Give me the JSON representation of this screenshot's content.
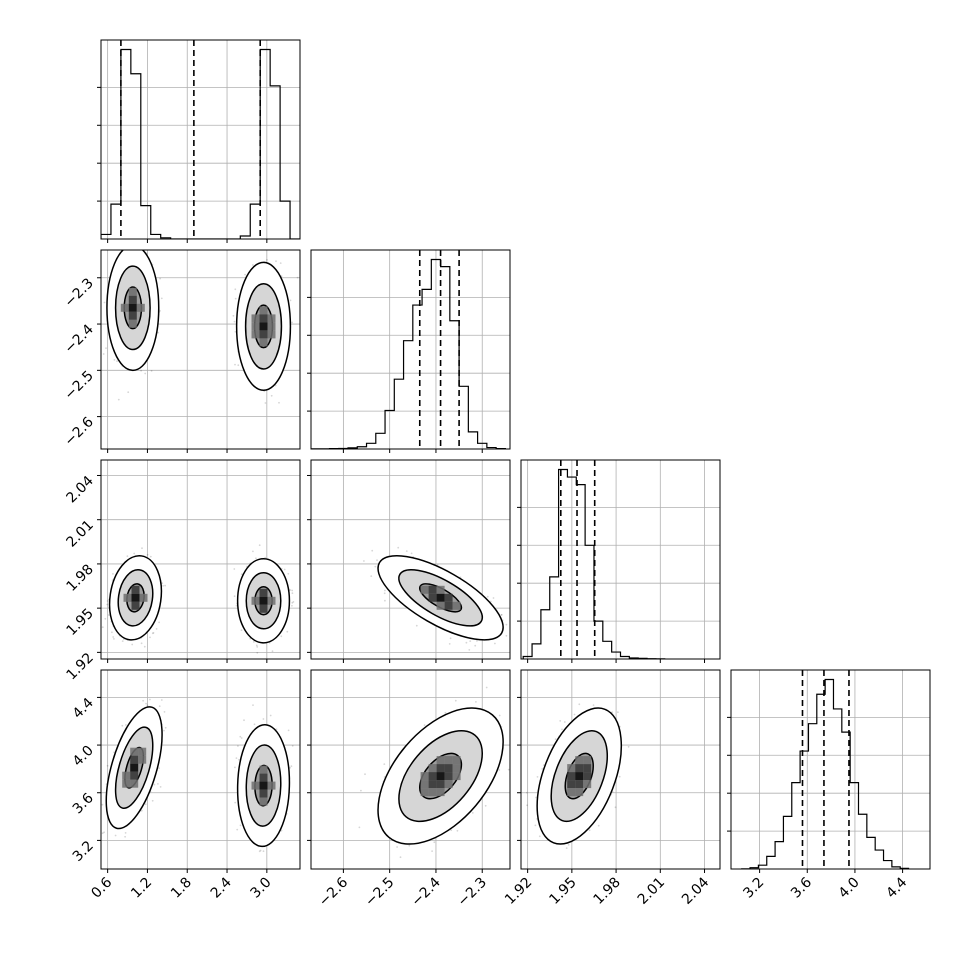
{
  "chart_data": {
    "type": "corner",
    "grid": true,
    "parameters": [
      {
        "ticks": [
          0.6,
          1.2,
          1.8,
          2.4,
          3.0
        ],
        "tick_labels": [
          "0.6",
          "1.2",
          "1.8",
          "2.4",
          "3.0"
        ],
        "range": [
          0.5,
          3.5
        ],
        "quantiles": [
          0.8,
          1.9,
          2.9
        ],
        "histogram": {
          "edges": [
            0.5,
            0.65,
            0.8,
            0.95,
            1.1,
            1.25,
            1.4,
            1.55,
            2.6,
            2.75,
            2.9,
            3.05,
            3.2,
            3.35,
            3.5
          ],
          "counts": [
            30,
            230,
            1250,
            1090,
            220,
            30,
            8,
            0,
            20,
            230,
            1250,
            1010,
            250,
            0
          ]
        }
      },
      {
        "ticks": [
          -2.6,
          -2.5,
          -2.4,
          -2.3
        ],
        "tick_labels": [
          "−2.6",
          "−2.5",
          "−2.4",
          "−2.3"
        ],
        "range": [
          -2.67,
          -2.24
        ],
        "quantiles": [
          -2.435,
          -2.39,
          -2.35
        ],
        "histogram": {
          "edges": [
            -2.67,
            -2.65,
            -2.63,
            -2.61,
            -2.59,
            -2.57,
            -2.55,
            -2.53,
            -2.51,
            -2.49,
            -2.47,
            -2.45,
            -2.43,
            -2.41,
            -2.39,
            -2.37,
            -2.35,
            -2.33,
            -2.31,
            -2.29,
            -2.27,
            -2.25
          ],
          "counts": [
            1,
            1,
            3,
            4,
            8,
            16,
            40,
            110,
            270,
            490,
            760,
            1010,
            1120,
            1330,
            1280,
            900,
            440,
            120,
            40,
            10,
            3
          ]
        }
      },
      {
        "ticks": [
          1.92,
          1.95,
          1.98,
          2.01,
          2.04
        ],
        "tick_labels": [
          "1.92",
          "1.95",
          "1.98",
          "2.01",
          "2.04"
        ],
        "range": [
          1.9155,
          2.0505
        ],
        "quantiles": [
          1.9425,
          1.9535,
          1.9655
        ],
        "histogram": {
          "edges": [
            1.917,
            1.923,
            1.929,
            1.935,
            1.941,
            1.947,
            1.953,
            1.959,
            1.965,
            1.971,
            1.977,
            1.983,
            1.989,
            1.995,
            2.001,
            2.007,
            2.013
          ],
          "counts": [
            20,
            120,
            390,
            650,
            1500,
            1440,
            1380,
            900,
            300,
            140,
            55,
            20,
            8,
            5,
            2,
            1
          ]
        }
      },
      {
        "ticks": [
          3.2,
          3.6,
          4.0,
          4.4
        ],
        "tick_labels": [
          "3.2",
          "3.6",
          "4.0",
          "4.4"
        ],
        "range": [
          2.96,
          4.63
        ],
        "quantiles": [
          3.56,
          3.74,
          3.95
        ],
        "histogram": {
          "edges": [
            3.05,
            3.12,
            3.19,
            3.26,
            3.33,
            3.4,
            3.47,
            3.54,
            3.61,
            3.68,
            3.75,
            3.82,
            3.89,
            3.96,
            4.03,
            4.1,
            4.17,
            4.24,
            4.31,
            4.38,
            4.45
          ],
          "counts": [
            1,
            6,
            18,
            60,
            130,
            250,
            410,
            560,
            690,
            830,
            900,
            760,
            650,
            410,
            260,
            150,
            90,
            40,
            10,
            3
          ]
        }
      }
    ],
    "pairs": [
      {
        "row": 1,
        "col": 0,
        "blobs": [
          {
            "cx": 0.98,
            "cy": -2.365,
            "sx": 0.13,
            "sy": 0.045,
            "rho": 0.0,
            "weight": 1
          },
          {
            "cx": 2.95,
            "cy": -2.405,
            "sx": 0.135,
            "sy": 0.046,
            "rho": 0.0,
            "weight": 1
          }
        ]
      },
      {
        "row": 2,
        "col": 0,
        "blobs": [
          {
            "cx": 1.02,
            "cy": 1.957,
            "sx": 0.13,
            "sy": 0.0095,
            "rho": 0.15,
            "weight": 1
          },
          {
            "cx": 2.95,
            "cy": 1.955,
            "sx": 0.13,
            "sy": 0.0095,
            "rho": 0.0,
            "weight": 1
          }
        ]
      },
      {
        "row": 3,
        "col": 0,
        "blobs": [
          {
            "cx": 1.0,
            "cy": 3.81,
            "sx": 0.14,
            "sy": 0.17,
            "rho": 0.55,
            "weight": 1
          },
          {
            "cx": 2.95,
            "cy": 3.66,
            "sx": 0.13,
            "sy": 0.17,
            "rho": 0.05,
            "weight": 1
          }
        ]
      },
      {
        "row": 2,
        "col": 1,
        "blobs": [
          {
            "cx": -2.39,
            "cy": 1.957,
            "sx": 0.045,
            "sy": 0.0095,
            "rho": -0.7,
            "weight": 1
          }
        ]
      },
      {
        "row": 3,
        "col": 1,
        "blobs": [
          {
            "cx": -2.39,
            "cy": 3.74,
            "sx": 0.045,
            "sy": 0.19,
            "rho": 0.5,
            "weight": 1
          }
        ]
      },
      {
        "row": 3,
        "col": 2,
        "blobs": [
          {
            "cx": 1.955,
            "cy": 3.74,
            "sx": 0.0095,
            "sy": 0.19,
            "rho": 0.45,
            "weight": 1
          }
        ]
      }
    ]
  }
}
